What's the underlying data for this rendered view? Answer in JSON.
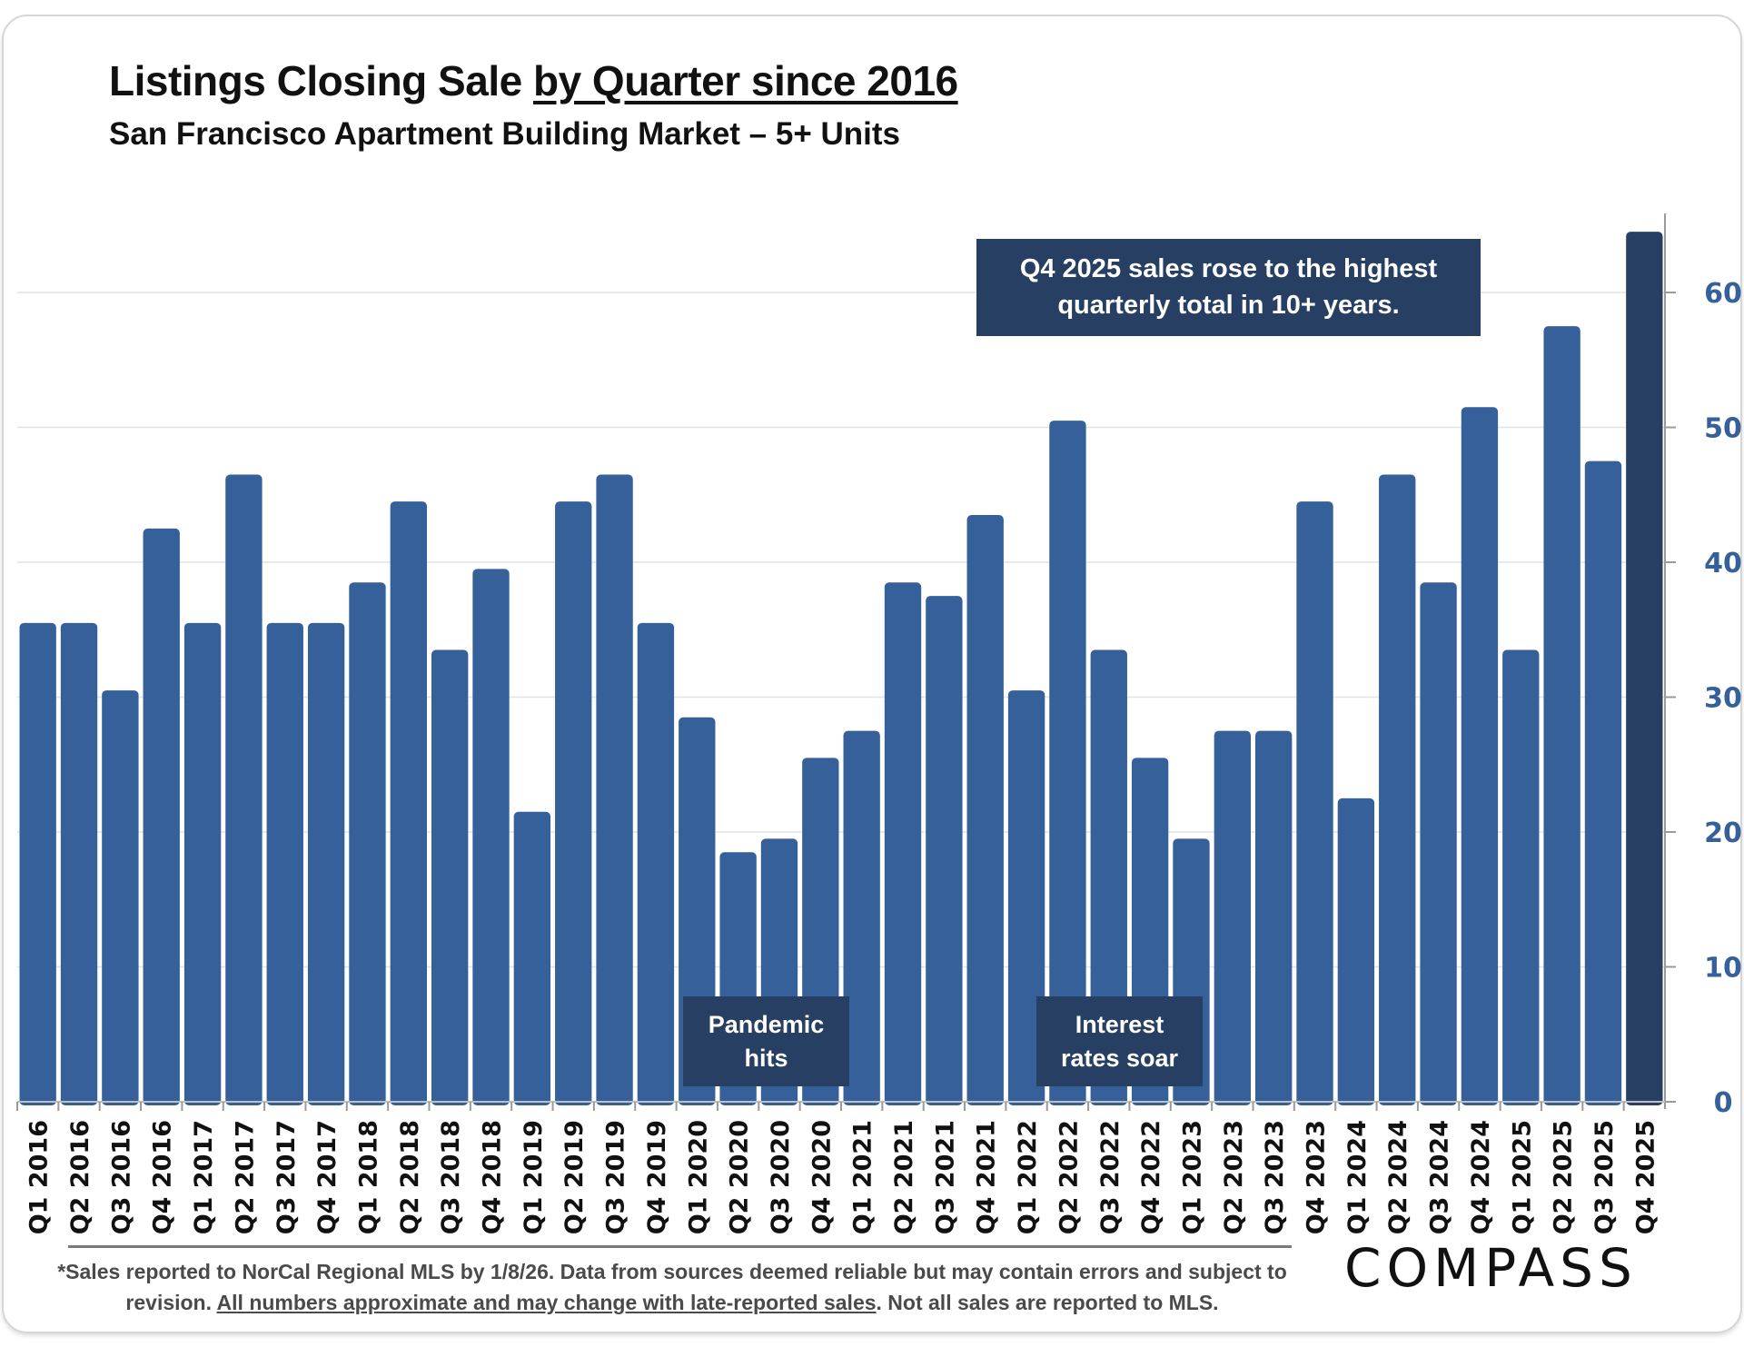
{
  "header": {
    "title_part1": "Listings Closing Sale ",
    "title_part2": "by Quarter since 2016",
    "subtitle": "San Francisco Apartment Building Market – 5+ Units"
  },
  "annotations": {
    "highlight": "Q4 2025 sales rose to the highest quarterly total in 10+ years.",
    "highlight_line1": "Q4 2025 sales rose to the highest",
    "highlight_line2": "quarterly total in 10+ years.",
    "pandemic_line1": "Pandemic",
    "pandemic_line2": "hits",
    "rates_line1": "Interest",
    "rates_line2": "rates soar"
  },
  "footer": {
    "note_part1": "*Sales reported to NorCal Regional MLS by 1/8/26. Data from sources deemed reliable but may contain errors and subject to revision. ",
    "note_part2": "All numbers approximate and may change with late-reported sales",
    "note_part3": ". Not all sales are reported to MLS.",
    "logo": "COMPASS"
  },
  "colors": {
    "bar": "#36609a",
    "bar_highlight": "#273f63",
    "axis_label": "#36609a",
    "callout_bg": "#273f63"
  },
  "chart_data": {
    "type": "bar",
    "title": "Listings Closing Sale by Quarter since 2016",
    "subtitle": "San Francisco Apartment Building Market – 5+ Units",
    "xlabel": "",
    "ylabel": "",
    "ylim": [
      0,
      65
    ],
    "yticks": [
      0,
      10,
      20,
      30,
      40,
      50,
      60
    ],
    "y_axis_side": "right",
    "grid": true,
    "categories": [
      "Q1 2016",
      "Q2 2016",
      "Q3 2016",
      "Q4 2016",
      "Q1 2017",
      "Q2 2017",
      "Q3 2017",
      "Q4 2017",
      "Q1 2018",
      "Q2 2018",
      "Q3 2018",
      "Q4 2018",
      "Q1 2019",
      "Q2 2019",
      "Q3 2019",
      "Q4 2019",
      "Q1 2020",
      "Q2 2020",
      "Q3 2020",
      "Q4 2020",
      "Q1 2021",
      "Q2 2021",
      "Q3 2021",
      "Q4 2021",
      "Q1 2022",
      "Q2 2022",
      "Q3 2022",
      "Q4 2022",
      "Q1 2023",
      "Q2 2023",
      "Q3 2023",
      "Q4 2023",
      "Q1 2024",
      "Q2 2024",
      "Q3 2024",
      "Q4 2024",
      "Q1 2025",
      "Q2 2025",
      "Q3 2025",
      "Q4 2025"
    ],
    "values": [
      35,
      35,
      30,
      42,
      35,
      46,
      35,
      35,
      38,
      44,
      33,
      39,
      21,
      44,
      46,
      35,
      28,
      18,
      19,
      25,
      27,
      38,
      37,
      43,
      30,
      50,
      33,
      25,
      19,
      27,
      27,
      44,
      22,
      46,
      38,
      51,
      33,
      57,
      47,
      64
    ],
    "highlighted_category": "Q4 2025"
  }
}
